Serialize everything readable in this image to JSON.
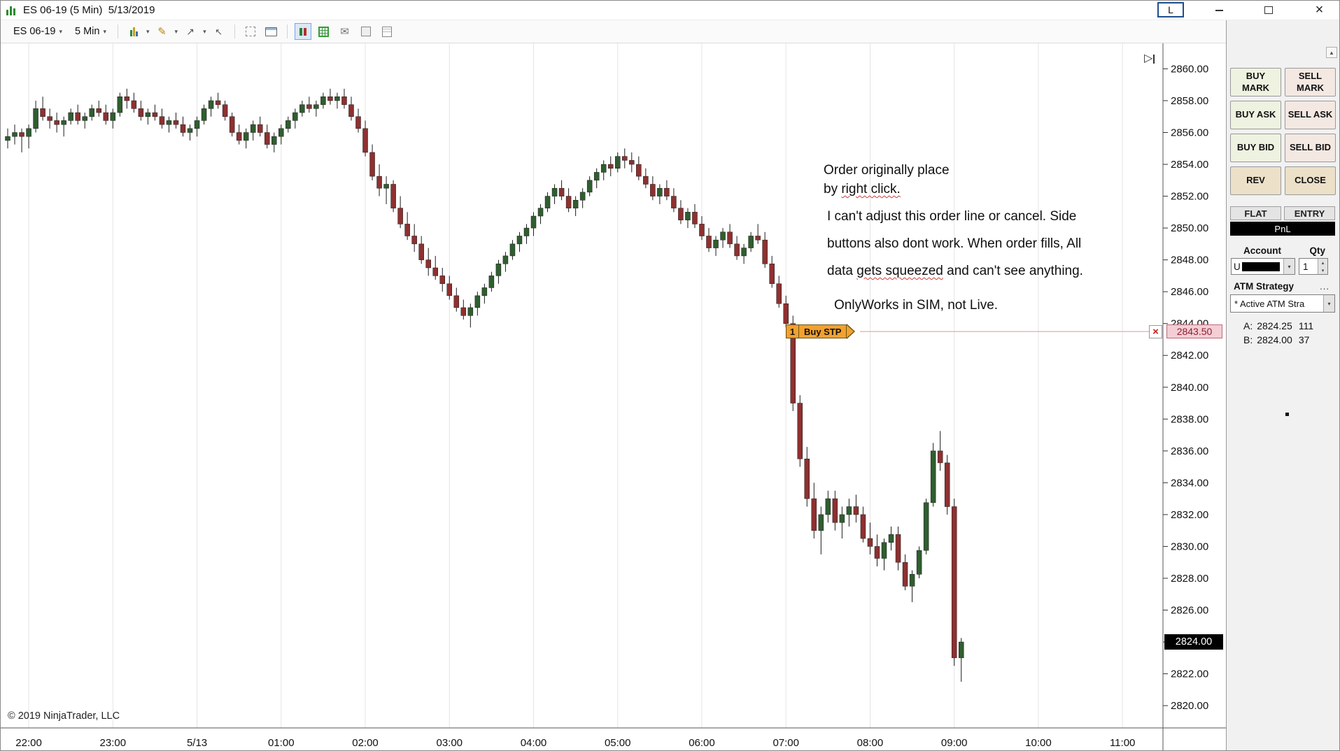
{
  "window": {
    "title": "ES 06-19 (5 Min)  5/13/2019",
    "l_label": "L"
  },
  "toolbar": {
    "instrument": "ES 06-19",
    "interval": "5 Min"
  },
  "chart": {
    "copyright": "© 2019 NinjaTrader, LLC",
    "last_price": "2824.00",
    "order": {
      "qty": "1",
      "label": "Buy STP",
      "price": "2843.50"
    },
    "annotations": {
      "line1": "Order originally place",
      "line2_pre": "by ",
      "line2_ul": "right click.",
      "line3": "I can't adjust this order line or cancel. Side",
      "line4": "buttons also dont work. When order fills, All",
      "line5_pre": "data ",
      "line5_ul": "gets squeezed",
      "line5_post": " and can't see anything.",
      "line6": "OnlyWorks in SIM, not Live."
    }
  },
  "panel": {
    "buy_mark": "BUY MARK",
    "sell_mark": "SELL MARK",
    "buy_ask": "BUY ASK",
    "sell_ask": "SELL ASK",
    "buy_bid": "BUY BID",
    "sell_bid": "SELL BID",
    "rev": "REV",
    "close": "CLOSE",
    "flat": "FLAT",
    "entry": "ENTRY",
    "pnl": "PnL",
    "account_label": "Account",
    "qty_label": "Qty",
    "account_text": "U",
    "qty_value": "1",
    "atm_label": "ATM Strategy",
    "atm_more": "...",
    "atm_value": "* Active ATM Stra",
    "ask_label": "A:",
    "ask_price": "2824.25",
    "ask_size": "111",
    "bid_label": "B:",
    "bid_price": "2824.00",
    "bid_size": "37"
  },
  "glyphs": {
    "caret": "▾",
    "up_arrow": "▲",
    "spin_up": "▴",
    "spin_down": "▾",
    "pencil": "✎",
    "envelope": "✉",
    "arrow_ne": "↗",
    "arrow_nw": "↖",
    "play_marker": "▷",
    "close": "×",
    "red_x": "×"
  },
  "chart_data": {
    "type": "candlestick",
    "instrument": "ES 06-19",
    "interval": "5 Min",
    "date": "5/13/2019",
    "x_labels": [
      "22:00",
      "23:00",
      "5/13",
      "01:00",
      "02:00",
      "03:00",
      "04:00",
      "05:00",
      "06:00",
      "07:00",
      "08:00",
      "09:00",
      "10:00",
      "11:00"
    ],
    "bars_per_label": 12,
    "first_label_bar": 3,
    "ylim": [
      2818.6,
      2861.6
    ],
    "y_ticks": [
      2860,
      2858,
      2856,
      2854,
      2852,
      2850,
      2848,
      2846,
      2844,
      2842,
      2840,
      2838,
      2836,
      2834,
      2832,
      2830,
      2828,
      2826,
      2824,
      2822,
      2820
    ],
    "grid": true,
    "legend": false,
    "up_color": "#2f5e2f",
    "down_color": "#8e3030",
    "wick_color": "#1c1c1c",
    "grid_color": "#e4e4e4",
    "order_line": {
      "price": 2843.5,
      "color": "#eba6b3",
      "label": "Buy STP",
      "qty": 1
    },
    "last_price": 2824.0,
    "ask": {
      "price": 2824.25,
      "size": 111
    },
    "bid": {
      "price": 2824.0,
      "size": 37
    },
    "candles": [
      [
        2855.5,
        2856.25,
        2855.0,
        2855.75
      ],
      [
        2855.75,
        2856.5,
        2855.25,
        2856.0
      ],
      [
        2856.0,
        2856.25,
        2854.75,
        2855.75
      ],
      [
        2855.75,
        2856.5,
        2855.0,
        2856.25
      ],
      [
        2856.25,
        2858.0,
        2856.0,
        2857.5
      ],
      [
        2857.5,
        2858.25,
        2856.75,
        2857.0
      ],
      [
        2857.0,
        2857.5,
        2856.25,
        2856.75
      ],
      [
        2856.75,
        2857.25,
        2856.0,
        2856.5
      ],
      [
        2856.5,
        2857.0,
        2855.75,
        2856.75
      ],
      [
        2856.75,
        2857.5,
        2856.5,
        2857.25
      ],
      [
        2857.25,
        2857.75,
        2856.5,
        2856.75
      ],
      [
        2856.75,
        2857.25,
        2856.25,
        2857.0
      ],
      [
        2857.0,
        2857.75,
        2856.75,
        2857.5
      ],
      [
        2857.5,
        2858.0,
        2857.0,
        2857.25
      ],
      [
        2857.25,
        2857.75,
        2856.5,
        2856.75
      ],
      [
        2856.75,
        2857.5,
        2856.25,
        2857.25
      ],
      [
        2857.25,
        2858.5,
        2857.0,
        2858.25
      ],
      [
        2858.25,
        2858.75,
        2857.5,
        2858.0
      ],
      [
        2858.0,
        2858.5,
        2857.25,
        2857.5
      ],
      [
        2857.5,
        2858.0,
        2856.75,
        2857.0
      ],
      [
        2857.0,
        2857.5,
        2856.5,
        2857.25
      ],
      [
        2857.25,
        2857.75,
        2856.75,
        2857.0
      ],
      [
        2857.0,
        2857.5,
        2856.25,
        2856.5
      ],
      [
        2856.5,
        2857.0,
        2856.0,
        2856.75
      ],
      [
        2856.75,
        2857.25,
        2856.25,
        2856.5
      ],
      [
        2856.5,
        2857.0,
        2855.75,
        2856.0
      ],
      [
        2856.0,
        2856.5,
        2855.5,
        2856.25
      ],
      [
        2856.25,
        2857.0,
        2855.75,
        2856.75
      ],
      [
        2856.75,
        2857.75,
        2856.5,
        2857.5
      ],
      [
        2857.5,
        2858.25,
        2857.0,
        2858.0
      ],
      [
        2858.0,
        2858.5,
        2857.5,
        2857.75
      ],
      [
        2857.75,
        2858.0,
        2856.75,
        2857.0
      ],
      [
        2857.0,
        2857.25,
        2855.75,
        2856.0
      ],
      [
        2856.0,
        2856.5,
        2855.25,
        2855.5
      ],
      [
        2855.5,
        2856.25,
        2855.0,
        2856.0
      ],
      [
        2856.0,
        2856.75,
        2855.5,
        2856.5
      ],
      [
        2856.5,
        2857.0,
        2855.75,
        2856.0
      ],
      [
        2856.0,
        2856.5,
        2855.0,
        2855.25
      ],
      [
        2855.25,
        2856.0,
        2854.75,
        2855.75
      ],
      [
        2855.75,
        2856.5,
        2855.25,
        2856.25
      ],
      [
        2856.25,
        2857.0,
        2856.0,
        2856.75
      ],
      [
        2856.75,
        2857.5,
        2856.25,
        2857.25
      ],
      [
        2857.25,
        2858.0,
        2857.0,
        2857.75
      ],
      [
        2857.75,
        2858.25,
        2857.25,
        2857.5
      ],
      [
        2857.5,
        2858.0,
        2857.0,
        2857.75
      ],
      [
        2857.75,
        2858.5,
        2857.5,
        2858.25
      ],
      [
        2858.25,
        2858.75,
        2857.75,
        2858.0
      ],
      [
        2858.0,
        2858.5,
        2857.5,
        2858.25
      ],
      [
        2858.25,
        2858.75,
        2857.5,
        2857.75
      ],
      [
        2857.75,
        2858.25,
        2856.75,
        2857.0
      ],
      [
        2857.0,
        2857.5,
        2856.0,
        2856.25
      ],
      [
        2856.25,
        2856.75,
        2854.5,
        2854.75
      ],
      [
        2854.75,
        2855.25,
        2853.0,
        2853.25
      ],
      [
        2853.25,
        2854.0,
        2852.0,
        2852.5
      ],
      [
        2852.5,
        2853.25,
        2851.5,
        2852.75
      ],
      [
        2852.75,
        2853.0,
        2851.0,
        2851.25
      ],
      [
        2851.25,
        2852.0,
        2850.0,
        2850.25
      ],
      [
        2850.25,
        2851.0,
        2849.25,
        2849.5
      ],
      [
        2849.5,
        2850.25,
        2848.5,
        2849.0
      ],
      [
        2849.0,
        2849.5,
        2847.75,
        2848.0
      ],
      [
        2848.0,
        2848.75,
        2847.0,
        2847.5
      ],
      [
        2847.5,
        2848.25,
        2846.75,
        2847.0
      ],
      [
        2847.0,
        2847.5,
        2846.0,
        2846.5
      ],
      [
        2846.5,
        2847.0,
        2845.5,
        2845.75
      ],
      [
        2845.75,
        2846.25,
        2844.75,
        2845.0
      ],
      [
        2845.0,
        2845.5,
        2844.25,
        2844.5
      ],
      [
        2844.5,
        2845.25,
        2843.75,
        2845.0
      ],
      [
        2845.0,
        2846.0,
        2844.5,
        2845.75
      ],
      [
        2845.75,
        2846.5,
        2845.25,
        2846.25
      ],
      [
        2846.25,
        2847.25,
        2846.0,
        2847.0
      ],
      [
        2847.0,
        2848.0,
        2846.5,
        2847.75
      ],
      [
        2847.75,
        2848.5,
        2847.25,
        2848.25
      ],
      [
        2848.25,
        2849.25,
        2848.0,
        2849.0
      ],
      [
        2849.0,
        2849.75,
        2848.5,
        2849.5
      ],
      [
        2849.5,
        2850.25,
        2849.0,
        2850.0
      ],
      [
        2850.0,
        2851.0,
        2849.5,
        2850.75
      ],
      [
        2850.75,
        2851.5,
        2850.25,
        2851.25
      ],
      [
        2851.25,
        2852.25,
        2851.0,
        2852.0
      ],
      [
        2852.0,
        2852.75,
        2851.5,
        2852.5
      ],
      [
        2852.5,
        2853.0,
        2851.75,
        2852.0
      ],
      [
        2852.0,
        2852.5,
        2851.0,
        2851.25
      ],
      [
        2851.25,
        2852.0,
        2850.75,
        2851.75
      ],
      [
        2851.75,
        2852.5,
        2851.25,
        2852.25
      ],
      [
        2852.25,
        2853.25,
        2852.0,
        2853.0
      ],
      [
        2853.0,
        2853.75,
        2852.5,
        2853.5
      ],
      [
        2853.5,
        2854.25,
        2853.0,
        2854.0
      ],
      [
        2854.0,
        2854.5,
        2853.25,
        2853.75
      ],
      [
        2853.75,
        2854.75,
        2853.5,
        2854.5
      ],
      [
        2854.5,
        2855.0,
        2853.75,
        2854.25
      ],
      [
        2854.25,
        2854.75,
        2853.5,
        2854.0
      ],
      [
        2854.0,
        2854.5,
        2853.0,
        2853.25
      ],
      [
        2853.25,
        2853.75,
        2852.5,
        2852.75
      ],
      [
        2852.75,
        2853.25,
        2851.75,
        2852.0
      ],
      [
        2852.0,
        2852.75,
        2851.5,
        2852.5
      ],
      [
        2852.5,
        2853.0,
        2851.75,
        2852.0
      ],
      [
        2852.0,
        2852.5,
        2851.0,
        2851.25
      ],
      [
        2851.25,
        2851.75,
        2850.25,
        2850.5
      ],
      [
        2850.5,
        2851.25,
        2850.0,
        2851.0
      ],
      [
        2851.0,
        2851.5,
        2850.0,
        2850.25
      ],
      [
        2850.25,
        2850.75,
        2849.25,
        2849.5
      ],
      [
        2849.5,
        2850.0,
        2848.5,
        2848.75
      ],
      [
        2848.75,
        2849.5,
        2848.25,
        2849.25
      ],
      [
        2849.25,
        2850.0,
        2848.75,
        2849.75
      ],
      [
        2849.75,
        2850.25,
        2848.75,
        2849.0
      ],
      [
        2849.0,
        2849.5,
        2848.0,
        2848.25
      ],
      [
        2848.25,
        2849.0,
        2847.75,
        2848.75
      ],
      [
        2848.75,
        2849.75,
        2848.5,
        2849.5
      ],
      [
        2849.5,
        2850.25,
        2849.0,
        2849.25
      ],
      [
        2849.25,
        2849.75,
        2847.5,
        2847.75
      ],
      [
        2847.75,
        2848.25,
        2846.25,
        2846.5
      ],
      [
        2846.5,
        2847.0,
        2845.0,
        2845.25
      ],
      [
        2845.25,
        2845.75,
        2843.75,
        2844.0
      ],
      [
        2844.0,
        2844.5,
        2838.5,
        2839.0
      ],
      [
        2839.0,
        2839.5,
        2835.0,
        2835.5
      ],
      [
        2835.5,
        2836.25,
        2832.5,
        2833.0
      ],
      [
        2833.0,
        2834.0,
        2830.5,
        2831.0
      ],
      [
        2831.0,
        2832.5,
        2829.5,
        2832.0
      ],
      [
        2832.0,
        2833.5,
        2831.5,
        2833.0
      ],
      [
        2833.0,
        2833.5,
        2831.0,
        2831.5
      ],
      [
        2831.5,
        2832.5,
        2830.5,
        2832.0
      ],
      [
        2832.0,
        2833.0,
        2831.25,
        2832.5
      ],
      [
        2832.5,
        2833.25,
        2831.5,
        2832.0
      ],
      [
        2832.0,
        2832.5,
        2830.25,
        2830.5
      ],
      [
        2830.5,
        2831.5,
        2829.5,
        2830.0
      ],
      [
        2830.0,
        2830.75,
        2828.75,
        2829.25
      ],
      [
        2829.25,
        2830.5,
        2828.5,
        2830.25
      ],
      [
        2830.25,
        2831.25,
        2829.75,
        2830.75
      ],
      [
        2830.75,
        2831.25,
        2828.5,
        2829.0
      ],
      [
        2829.0,
        2829.5,
        2827.25,
        2827.5
      ],
      [
        2827.5,
        2828.5,
        2826.5,
        2828.25
      ],
      [
        2828.25,
        2830.0,
        2828.0,
        2829.75
      ],
      [
        2829.75,
        2833.0,
        2829.5,
        2832.75
      ],
      [
        2832.75,
        2836.5,
        2832.5,
        2836.0
      ],
      [
        2836.0,
        2837.25,
        2834.75,
        2835.25
      ],
      [
        2835.25,
        2835.75,
        2832.0,
        2832.5
      ],
      [
        2832.5,
        2833.0,
        2822.5,
        2823.0
      ],
      [
        2823.0,
        2824.25,
        2821.5,
        2824.0
      ]
    ]
  }
}
